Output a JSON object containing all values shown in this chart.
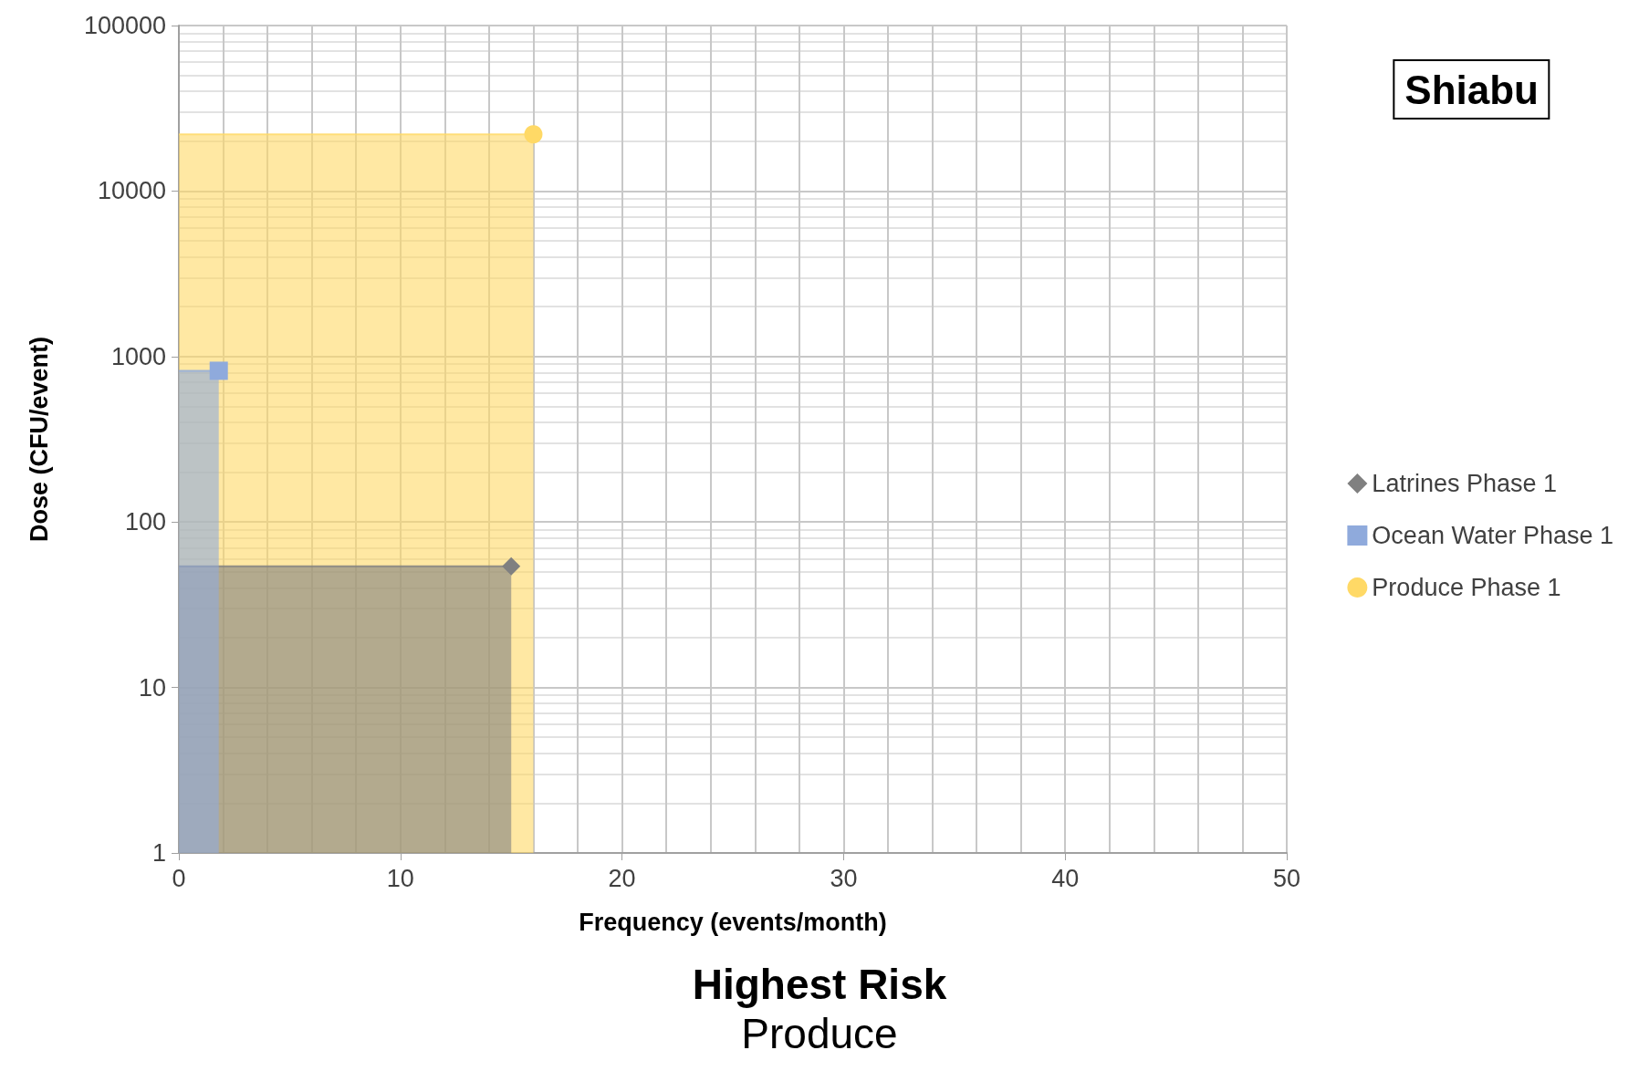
{
  "chart_data": {
    "type": "scatter",
    "title": "Shiabu",
    "xlabel": "Frequency (events/month)",
    "ylabel": "Dose (CFU/event)",
    "annotations": [
      "Highest Risk",
      "Produce"
    ],
    "log": "y",
    "grid": true,
    "legend": "right",
    "xlim": [
      0,
      50
    ],
    "xticks": [
      0,
      10,
      20,
      30,
      40,
      50
    ],
    "ylim": [
      1,
      100000
    ],
    "yticks": [
      1,
      10,
      100,
      1000,
      10000,
      100000
    ],
    "series": [
      {
        "type": "area",
        "color": "#ffd966",
        "x": [
          0,
          16
        ],
        "values": [
          22000,
          22000
        ]
      },
      {
        "type": "area",
        "color": "#808080",
        "x": [
          0,
          15
        ],
        "values": [
          54,
          54
        ]
      },
      {
        "type": "area",
        "color": "#8faadc",
        "x": [
          0,
          1.8
        ],
        "values": [
          820,
          820
        ]
      },
      {
        "name": "Latrines Phase 1",
        "color": "#808080",
        "marker": "diamond",
        "x": [
          15
        ],
        "values": [
          54
        ]
      },
      {
        "name": "Ocean Water Phase 1",
        "color": "#8faadc",
        "marker": "square",
        "x": [
          1.8
        ],
        "values": [
          820
        ]
      },
      {
        "name": "Produce Phase 1",
        "color": "#ffd966",
        "marker": "circle",
        "x": [
          16
        ],
        "values": [
          22000
        ]
      }
    ]
  }
}
